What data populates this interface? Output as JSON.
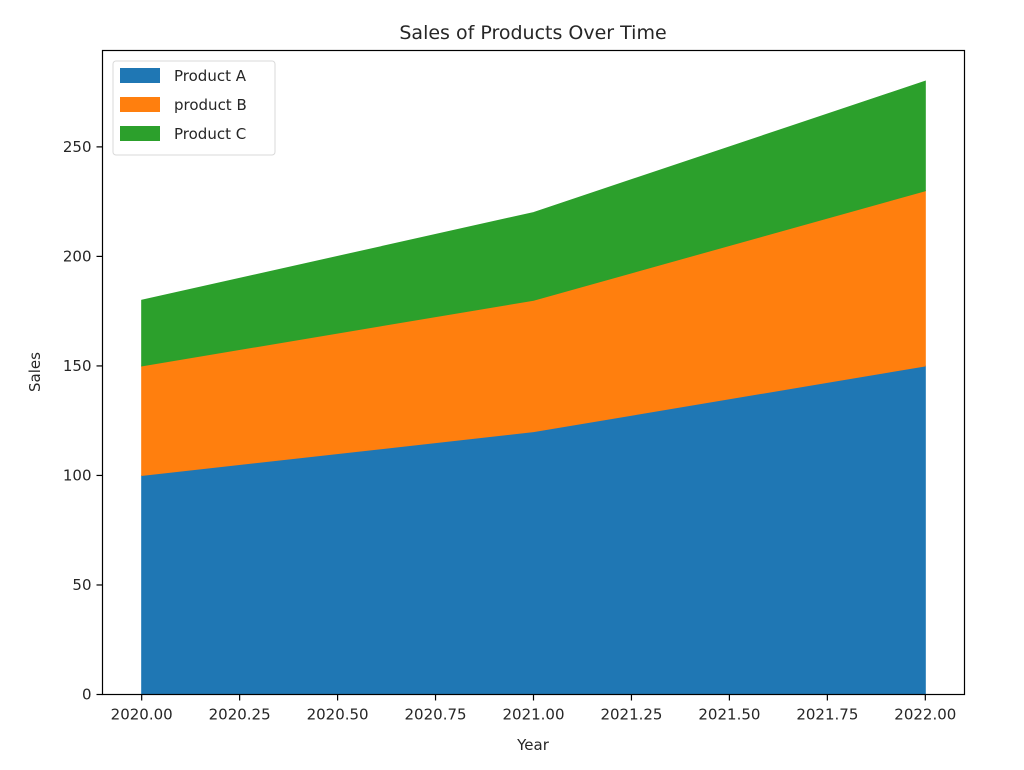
{
  "chart_data": {
    "type": "area",
    "stacked": true,
    "title": "Sales of Products Over Time",
    "xlabel": "Year",
    "ylabel": "Sales",
    "x": [
      2020,
      2021,
      2022
    ],
    "series": [
      {
        "name": "Product A",
        "values": [
          100,
          120,
          150
        ],
        "color": "#1f77b4"
      },
      {
        "name": "product B",
        "values": [
          50,
          60,
          80
        ],
        "color": "#ff7f0e"
      },
      {
        "name": "Product C",
        "values": [
          30,
          40,
          50
        ],
        "color": "#2ca02c"
      }
    ],
    "xlim": [
      2019.9,
      2022.1
    ],
    "ylim": [
      0,
      294
    ],
    "xticks": [
      2020.0,
      2020.25,
      2020.5,
      2020.75,
      2021.0,
      2021.25,
      2021.5,
      2021.75,
      2022.0
    ],
    "xtick_labels": [
      "2020.00",
      "2020.25",
      "2020.50",
      "2020.75",
      "2021.00",
      "2021.25",
      "2021.50",
      "2021.75",
      "2022.00"
    ],
    "yticks": [
      0,
      50,
      100,
      150,
      200,
      250
    ],
    "ytick_labels": [
      "0",
      "50",
      "100",
      "150",
      "200",
      "250"
    ],
    "grid": false,
    "legend_position": "upper-left"
  }
}
